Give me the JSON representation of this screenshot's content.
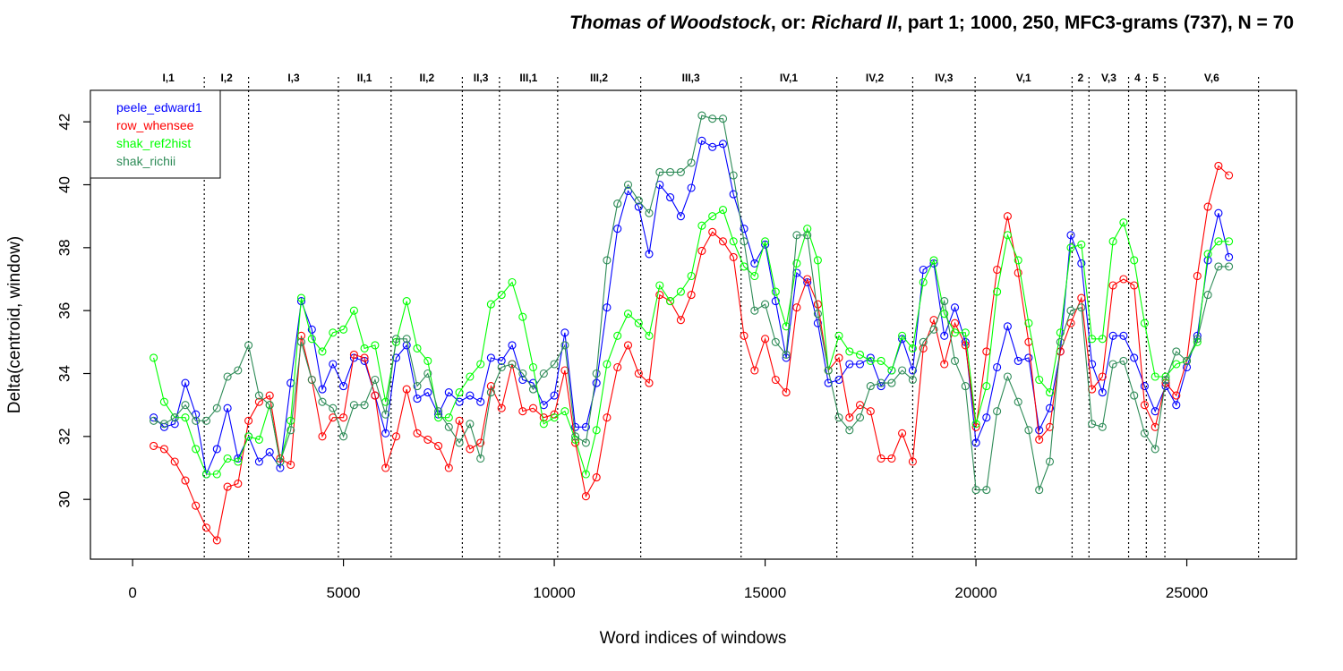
{
  "chart_data": {
    "type": "line",
    "title_parts": [
      {
        "text": "Thomas of Woodstock",
        "italic": true
      },
      {
        "text": ", or: ",
        "italic": false
      },
      {
        "text": "Richard II",
        "italic": true
      },
      {
        "text": ", part 1; 1000, 250, MFC3-grams (737), N = 70",
        "italic": false
      }
    ],
    "xlabel": "Word indices of windows",
    "ylabel": "Delta(centroid, window)",
    "xlim": [
      -1000,
      27600
    ],
    "ylim": [
      28.1,
      43.0
    ],
    "xticks": [
      0,
      5000,
      10000,
      15000,
      20000,
      25000
    ],
    "yticks": [
      30,
      32,
      34,
      36,
      38,
      40,
      42
    ],
    "legend_position": "top-left",
    "boundaries": [
      1700,
      2750,
      4880,
      6130,
      7820,
      8700,
      10080,
      12050,
      14430,
      16700,
      18500,
      19980,
      22280,
      22680,
      23620,
      24040,
      24480,
      26700
    ],
    "scenes": [
      {
        "label": "I,1",
        "x": 850
      },
      {
        "label": "I,2",
        "x": 2230
      },
      {
        "label": "I,3",
        "x": 3820
      },
      {
        "label": "II,1",
        "x": 5500
      },
      {
        "label": "II,2",
        "x": 6980
      },
      {
        "label": "II,3",
        "x": 8260
      },
      {
        "label": "III,1",
        "x": 9390
      },
      {
        "label": "III,2",
        "x": 11060
      },
      {
        "label": "III,3",
        "x": 13240
      },
      {
        "label": "IV,1",
        "x": 15560
      },
      {
        "label": "IV,2",
        "x": 17600
      },
      {
        "label": "IV,3",
        "x": 19240
      },
      {
        "label": "V,1",
        "x": 21130
      },
      {
        "label": "2",
        "x": 22480
      },
      {
        "label": "V,3",
        "x": 23150
      },
      {
        "label": "4",
        "x": 23830
      },
      {
        "label": "5",
        "x": 24260
      },
      {
        "label": "V,6",
        "x": 25590
      }
    ],
    "x": [
      500,
      750,
      1000,
      1250,
      1500,
      1750,
      2000,
      2250,
      2500,
      2750,
      3000,
      3250,
      3500,
      3750,
      4000,
      4250,
      4500,
      4750,
      5000,
      5250,
      5500,
      5750,
      6000,
      6250,
      6500,
      6750,
      7000,
      7250,
      7500,
      7750,
      8000,
      8250,
      8500,
      8750,
      9000,
      9250,
      9500,
      9750,
      10000,
      10250,
      10500,
      10750,
      11000,
      11250,
      11500,
      11750,
      12000,
      12250,
      12500,
      12750,
      13000,
      13250,
      13500,
      13750,
      14000,
      14250,
      14500,
      14750,
      15000,
      15250,
      15500,
      15750,
      16000,
      16250,
      16500,
      16750,
      17000,
      17250,
      17500,
      17750,
      18000,
      18250,
      18500,
      18750,
      19000,
      19250,
      19500,
      19750,
      20000,
      20250,
      20500,
      20750,
      21000,
      21250,
      21500,
      21750,
      22000,
      22250,
      22500,
      22750,
      23000,
      23250,
      23500,
      23750,
      24000,
      24250,
      24500,
      24750,
      25000,
      25250,
      25500,
      25750,
      26000
    ],
    "series": [
      {
        "name": "peele_edward1",
        "color": "#0000ff",
        "values": [
          32.6,
          32.3,
          32.4,
          33.7,
          32.7,
          30.8,
          31.6,
          32.9,
          31.3,
          32.0,
          31.2,
          31.5,
          31.0,
          33.7,
          36.3,
          35.4,
          33.5,
          34.3,
          33.6,
          34.5,
          34.4,
          33.3,
          32.1,
          34.5,
          34.9,
          33.2,
          33.4,
          32.7,
          33.4,
          33.1,
          33.3,
          33.1,
          34.5,
          34.4,
          34.9,
          33.8,
          33.7,
          33.0,
          33.3,
          35.3,
          32.3,
          32.3,
          33.7,
          36.1,
          38.6,
          39.8,
          39.3,
          37.8,
          40.0,
          39.6,
          39.0,
          39.9,
          41.4,
          41.2,
          41.3,
          39.7,
          38.6,
          37.5,
          38.1,
          36.3,
          34.5,
          37.2,
          36.9,
          35.6,
          33.7,
          33.8,
          34.3,
          34.3,
          34.5,
          33.6,
          34.1,
          35.1,
          34.1,
          37.3,
          37.5,
          35.2,
          36.1,
          35.0,
          31.8,
          32.6,
          34.2,
          35.5,
          34.4,
          34.5,
          32.2,
          32.9,
          34.7,
          38.4,
          37.5,
          34.3,
          33.4,
          35.2,
          35.2,
          34.5,
          33.6,
          32.8,
          33.6,
          33.0,
          34.2,
          35.2,
          37.6,
          39.1,
          37.7
        ]
      },
      {
        "name": "row_whensee",
        "color": "#ff0000",
        "values": [
          31.7,
          31.6,
          31.2,
          30.6,
          29.8,
          29.1,
          28.7,
          30.4,
          30.5,
          32.5,
          33.1,
          33.3,
          31.3,
          31.1,
          35.2,
          33.8,
          32.0,
          32.6,
          32.6,
          34.6,
          34.5,
          33.3,
          31.0,
          32.0,
          33.5,
          32.1,
          31.9,
          31.7,
          31.0,
          32.5,
          31.6,
          31.8,
          33.6,
          32.9,
          34.3,
          32.8,
          32.9,
          32.6,
          32.7,
          34.1,
          31.8,
          30.1,
          30.7,
          32.6,
          34.2,
          34.9,
          34.0,
          33.7,
          36.5,
          36.3,
          35.7,
          36.5,
          37.9,
          38.5,
          38.2,
          37.7,
          35.2,
          34.1,
          35.1,
          33.8,
          33.4,
          36.1,
          37.0,
          36.2,
          34.1,
          34.5,
          32.6,
          33.0,
          32.8,
          31.3,
          31.3,
          32.1,
          31.2,
          34.8,
          35.7,
          34.3,
          35.6,
          34.9,
          32.3,
          34.7,
          37.3,
          39.0,
          37.2,
          35.0,
          31.9,
          32.3,
          34.7,
          35.6,
          36.4,
          33.5,
          33.9,
          36.8,
          37.0,
          36.8,
          33.0,
          32.3,
          33.7,
          33.3,
          34.4,
          37.1,
          39.3,
          40.6,
          40.3
        ]
      },
      {
        "name": "shak_ref2hist",
        "color": "#00ff00",
        "values": [
          34.5,
          33.1,
          32.6,
          32.6,
          31.6,
          30.8,
          30.8,
          31.3,
          31.2,
          32.0,
          31.9,
          33.0,
          31.2,
          32.5,
          36.4,
          35.1,
          34.7,
          35.3,
          35.4,
          36.0,
          34.8,
          34.9,
          33.1,
          35.0,
          36.3,
          34.8,
          34.4,
          32.6,
          32.6,
          33.4,
          33.9,
          34.3,
          36.2,
          36.5,
          36.9,
          35.8,
          34.2,
          32.4,
          32.6,
          32.8,
          31.9,
          30.8,
          32.2,
          34.3,
          35.2,
          35.9,
          35.6,
          35.2,
          36.8,
          36.3,
          36.6,
          37.1,
          38.7,
          39.0,
          39.2,
          38.2,
          37.4,
          37.1,
          38.2,
          36.6,
          35.5,
          37.5,
          38.6,
          37.6,
          34.1,
          35.2,
          34.7,
          34.6,
          34.4,
          34.4,
          34.1,
          35.2,
          34.8,
          36.9,
          37.6,
          35.9,
          35.3,
          35.3,
          32.4,
          33.6,
          36.6,
          38.4,
          37.6,
          35.6,
          33.8,
          33.4,
          35.3,
          38.0,
          38.1,
          35.1,
          35.1,
          38.2,
          38.8,
          37.6,
          35.6,
          33.9,
          33.9,
          34.3,
          34.4,
          35.0,
          37.8,
          38.2,
          38.2
        ]
      },
      {
        "name": "shak_richii",
        "color": "#2e8b57",
        "values": [
          32.5,
          32.4,
          32.6,
          33.0,
          32.5,
          32.5,
          32.9,
          33.9,
          34.1,
          34.9,
          33.3,
          33.0,
          31.2,
          32.2,
          35.0,
          33.8,
          33.1,
          32.9,
          32.0,
          33.0,
          33.0,
          33.8,
          32.7,
          35.1,
          35.1,
          33.6,
          34.0,
          32.8,
          32.3,
          31.8,
          32.4,
          31.3,
          33.4,
          34.2,
          34.3,
          34.0,
          33.5,
          34.0,
          34.3,
          34.9,
          32.0,
          31.8,
          34.0,
          37.6,
          39.4,
          40.0,
          39.5,
          39.1,
          40.4,
          40.4,
          40.4,
          40.7,
          42.2,
          42.1,
          42.1,
          40.3,
          38.2,
          36.0,
          36.2,
          35.0,
          34.6,
          38.4,
          38.4,
          35.9,
          34.1,
          32.6,
          32.2,
          32.6,
          33.6,
          33.7,
          33.7,
          34.1,
          33.8,
          35.0,
          35.4,
          36.3,
          34.4,
          33.6,
          30.3,
          30.3,
          32.8,
          33.9,
          33.1,
          32.2,
          30.3,
          31.2,
          35.0,
          36.0,
          36.1,
          32.4,
          32.3,
          34.3,
          34.4,
          33.3,
          32.1,
          31.6,
          33.8,
          34.7,
          34.4,
          35.1,
          36.5,
          37.4,
          37.4
        ]
      }
    ]
  }
}
